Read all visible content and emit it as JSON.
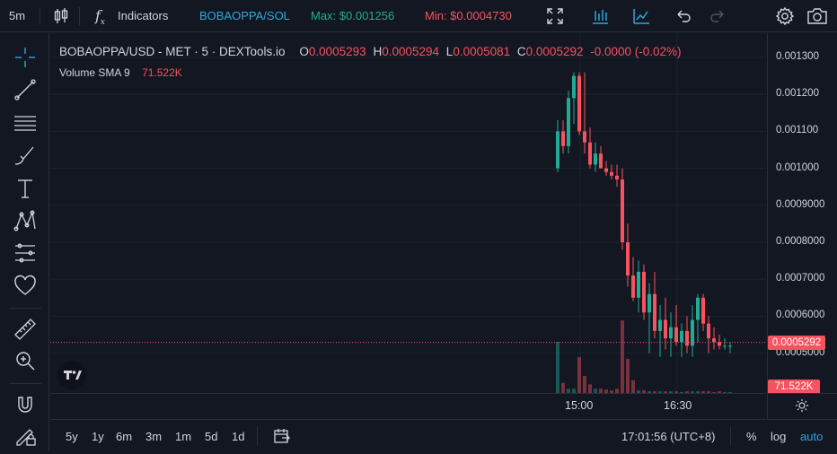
{
  "topbar": {
    "interval": "5m",
    "indicators_label": "Indicators",
    "pair_label": "BOBAOPPA/SOL",
    "max_label": "Max: $0.001256",
    "min_label": "Min: $0.0004730"
  },
  "legend": {
    "title": "BOBAOPPA/USD - MET · 5 · DEXTools.io",
    "o_key": "O",
    "o_val": "0.0005293",
    "h_key": "H",
    "h_val": "0.0005294",
    "l_key": "L",
    "l_val": "0.0005081",
    "c_key": "C",
    "c_val": "0.0005292",
    "change": "-0.0000 (-0.02%)",
    "volume_name": "Volume SMA 9",
    "volume_val": "71.522K"
  },
  "chart_data": {
    "type": "candlestick",
    "price_axis_ticks": [
      "0.001300",
      "0.001200",
      "0.001100",
      "0.001000",
      "0.0009000",
      "0.0008000",
      "0.0007000",
      "0.0006000",
      "0.0005000"
    ],
    "time_axis_ticks": [
      "15:00",
      "16:30"
    ],
    "current_price": "0.0005292",
    "current_volume": "71.522K",
    "candles": [
      {
        "o": 0.001,
        "h": 0.00113,
        "l": 0.00099,
        "c": 0.0011,
        "v": 0.6
      },
      {
        "o": 0.0011,
        "h": 0.00113,
        "l": 0.00104,
        "c": 0.00106,
        "v": 0.12
      },
      {
        "o": 0.00106,
        "h": 0.00121,
        "l": 0.00104,
        "c": 0.00119,
        "v": 0.05
      },
      {
        "o": 0.00119,
        "h": 0.00126,
        "l": 0.00112,
        "c": 0.00125,
        "v": 0.05
      },
      {
        "o": 0.00125,
        "h": 0.00126,
        "l": 0.00109,
        "c": 0.0011,
        "v": 0.42
      },
      {
        "o": 0.0011,
        "h": 0.00126,
        "l": 0.00104,
        "c": 0.00107,
        "v": 0.2
      },
      {
        "o": 0.00107,
        "h": 0.00111,
        "l": 0.001,
        "c": 0.00101,
        "v": 0.1
      },
      {
        "o": 0.00101,
        "h": 0.00107,
        "l": 0.00099,
        "c": 0.00104,
        "v": 0.05
      },
      {
        "o": 0.00104,
        "h": 0.00106,
        "l": 0.001,
        "c": 0.001,
        "v": 0.05
      },
      {
        "o": 0.001,
        "h": 0.00102,
        "l": 0.00098,
        "c": 0.00099,
        "v": 0.04
      },
      {
        "o": 0.00099,
        "h": 0.00101,
        "l": 0.00097,
        "c": 0.00098,
        "v": 0.03
      },
      {
        "o": 0.00098,
        "h": 0.00101,
        "l": 0.00095,
        "c": 0.00097,
        "v": 0.05
      },
      {
        "o": 0.00097,
        "h": 0.001,
        "l": 0.00078,
        "c": 0.0008,
        "v": 0.85
      },
      {
        "o": 0.0008,
        "h": 0.00085,
        "l": 0.00068,
        "c": 0.00071,
        "v": 0.4
      },
      {
        "o": 0.00071,
        "h": 0.00076,
        "l": 0.00064,
        "c": 0.00065,
        "v": 0.15
      },
      {
        "o": 0.00065,
        "h": 0.00075,
        "l": 0.00061,
        "c": 0.00072,
        "v": 0.03
      },
      {
        "o": 0.00072,
        "h": 0.00074,
        "l": 0.00059,
        "c": 0.00061,
        "v": 0.03
      },
      {
        "o": 0.00061,
        "h": 0.00069,
        "l": 0.0005,
        "c": 0.00066,
        "v": 0.02
      },
      {
        "o": 0.00066,
        "h": 0.00072,
        "l": 0.00054,
        "c": 0.00056,
        "v": 0.02
      },
      {
        "o": 0.00056,
        "h": 0.00063,
        "l": 0.00049,
        "c": 0.00059,
        "v": 0.02
      },
      {
        "o": 0.00059,
        "h": 0.00065,
        "l": 0.00051,
        "c": 0.00054,
        "v": 0.02
      },
      {
        "o": 0.00054,
        "h": 0.00061,
        "l": 0.00049,
        "c": 0.00057,
        "v": 0.02
      },
      {
        "o": 0.00057,
        "h": 0.00063,
        "l": 0.00052,
        "c": 0.00053,
        "v": 0.02
      },
      {
        "o": 0.00053,
        "h": 0.00058,
        "l": 0.00049,
        "c": 0.00056,
        "v": 0.01
      },
      {
        "o": 0.00056,
        "h": 0.0006,
        "l": 0.0005,
        "c": 0.00052,
        "v": 0.02
      },
      {
        "o": 0.00052,
        "h": 0.00063,
        "l": 0.00049,
        "c": 0.00059,
        "v": 0.02
      },
      {
        "o": 0.00059,
        "h": 0.00066,
        "l": 0.00053,
        "c": 0.00065,
        "v": 0.02
      },
      {
        "o": 0.00065,
        "h": 0.00066,
        "l": 0.00056,
        "c": 0.00058,
        "v": 0.02
      },
      {
        "o": 0.00058,
        "h": 0.0006,
        "l": 0.0005,
        "c": 0.00054,
        "v": 0.02
      },
      {
        "o": 0.00054,
        "h": 0.00057,
        "l": 0.00051,
        "c": 0.00053,
        "v": 0.01
      },
      {
        "o": 0.00053,
        "h": 0.00055,
        "l": 0.00051,
        "c": 0.00052,
        "v": 0.02
      },
      {
        "o": 0.00052,
        "h": 0.00054,
        "l": 0.00051,
        "c": 0.00052,
        "v": 0.01
      },
      {
        "o": 0.00052,
        "h": 0.00053,
        "l": 0.0005,
        "c": 0.00052,
        "v": 0.01
      }
    ]
  },
  "bottombar": {
    "ranges": [
      "5y",
      "1y",
      "6m",
      "3m",
      "1m",
      "5d",
      "1d"
    ],
    "clock": "17:01:56 (UTC+8)",
    "percent_label": "%",
    "log_label": "log",
    "auto_label": "auto"
  },
  "colors": {
    "up": "#22ab94",
    "down": "#f7525f",
    "bg": "#131722",
    "grid": "#1e222d"
  }
}
